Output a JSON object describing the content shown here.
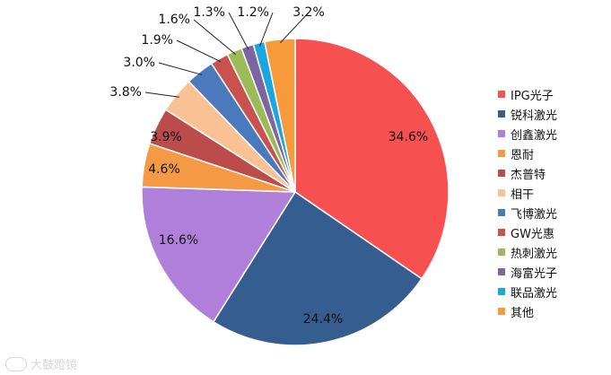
{
  "chart_data": {
    "type": "pie",
    "title": "",
    "legend_position": "right",
    "slices": [
      {
        "name": "IPG光子",
        "value": 34.6,
        "label": "34.6%",
        "color": "#f75050"
      },
      {
        "name": "锐科激光",
        "value": 24.4,
        "label": "24.4%",
        "color": "#365d8f"
      },
      {
        "name": "创鑫激光",
        "value": 16.6,
        "label": "16.6%",
        "color": "#b07fd9"
      },
      {
        "name": "恩耐",
        "value": 4.6,
        "label": "4.6%",
        "color": "#f49a45"
      },
      {
        "name": "杰普特",
        "value": 3.9,
        "label": "3.9%",
        "color": "#bc4b4b"
      },
      {
        "name": "相干",
        "value": 3.8,
        "label": "3.8%",
        "color": "#fac195"
      },
      {
        "name": "飞博激光",
        "value": 3.0,
        "label": "3.0%",
        "color": "#4a79bc"
      },
      {
        "name": "GW光惠",
        "value": 1.9,
        "label": "1.9%",
        "color": "#c9514e"
      },
      {
        "name": "热刺激光",
        "value": 1.6,
        "label": "1.6%",
        "color": "#9bbb59"
      },
      {
        "name": "海富光子",
        "value": 1.3,
        "label": "1.3%",
        "color": "#7f64a2"
      },
      {
        "name": "联品激光",
        "value": 1.2,
        "label": "1.2%",
        "color": "#1aa6e0"
      },
      {
        "name": "其他",
        "value": 3.2,
        "label": "3.2%",
        "color": "#f79a3c"
      }
    ]
  },
  "watermark": {
    "text": "大鼓蹬镜"
  }
}
